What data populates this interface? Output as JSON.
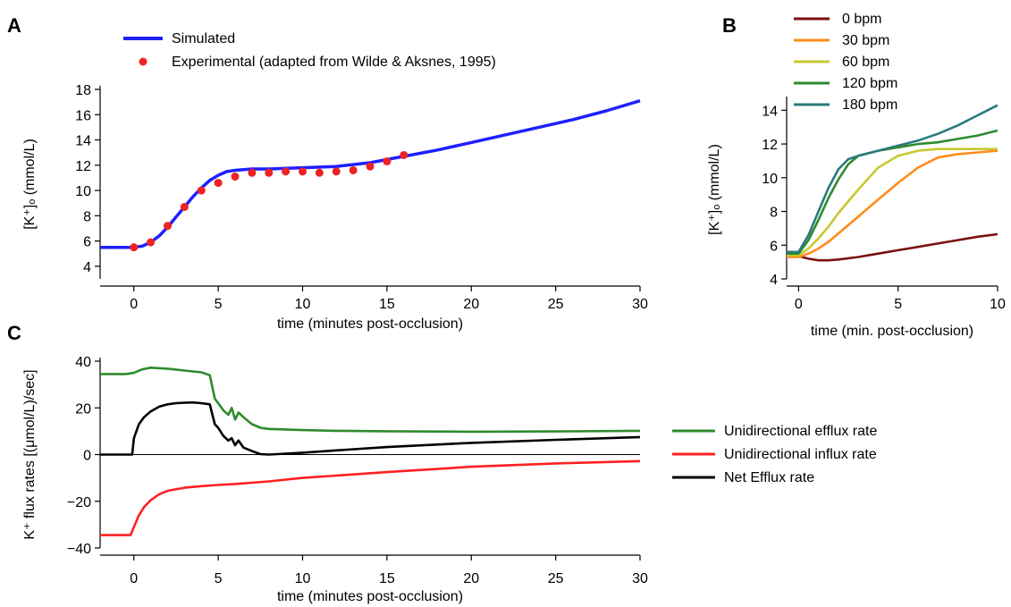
{
  "panel_letters": {
    "a": "A",
    "b": "B",
    "c": "C"
  },
  "chart_data": [
    {
      "id": "A",
      "type": "line",
      "xlabel": "time (minutes post-occlusion)",
      "ylabel": "[K⁺]ₒ (mmol/L)",
      "xlim": [
        -2,
        30
      ],
      "ylim": [
        3,
        18
      ],
      "xticks": [
        0,
        5,
        10,
        15,
        20,
        25,
        30
      ],
      "yticks": [
        4,
        6,
        8,
        10,
        12,
        14,
        16,
        18
      ],
      "legend_position": "top-left",
      "series": [
        {
          "name": "Simulated",
          "kind": "line",
          "color": "#1f1fff",
          "x": [
            -2,
            -1,
            0,
            0.5,
            1,
            1.5,
            2,
            2.5,
            3,
            3.5,
            4,
            4.5,
            5,
            5.5,
            6,
            7,
            8,
            10,
            12,
            14,
            16,
            18,
            20,
            22,
            24,
            26,
            28,
            30
          ],
          "y": [
            5.5,
            5.5,
            5.5,
            5.6,
            5.9,
            6.4,
            7.1,
            7.9,
            8.7,
            9.5,
            10.2,
            10.8,
            11.2,
            11.5,
            11.6,
            11.7,
            11.7,
            11.8,
            11.9,
            12.2,
            12.7,
            13.2,
            13.8,
            14.4,
            15.0,
            15.6,
            16.3,
            17.1
          ]
        },
        {
          "name": "Experimental (adapted from Wilde & Aksnes, 1995)",
          "kind": "scatter",
          "color": "#ee2222",
          "x": [
            0,
            1,
            2,
            3,
            4,
            5,
            6,
            7,
            8,
            9,
            10,
            11,
            12,
            13,
            14,
            15,
            16
          ],
          "y": [
            5.5,
            5.9,
            7.2,
            8.7,
            10.0,
            10.6,
            11.1,
            11.4,
            11.4,
            11.5,
            11.5,
            11.4,
            11.5,
            11.6,
            11.9,
            12.3,
            12.8
          ]
        }
      ]
    },
    {
      "id": "B",
      "type": "line",
      "xlabel": "time (min. post-occlusion)",
      "ylabel": "[K⁺]ₒ (mmol/L)",
      "xlim": [
        -0.6,
        10
      ],
      "ylim": [
        4,
        14.6
      ],
      "xticks": [
        0,
        5,
        10
      ],
      "yticks": [
        4,
        6,
        8,
        10,
        12,
        14
      ],
      "legend_position": "top",
      "series": [
        {
          "name": "0 bpm",
          "color": "#7a1010",
          "x": [
            -0.6,
            0,
            0.5,
            1,
            1.5,
            2,
            3,
            4,
            5,
            6,
            7,
            8,
            9,
            10
          ],
          "y": [
            5.4,
            5.35,
            5.2,
            5.1,
            5.1,
            5.15,
            5.3,
            5.5,
            5.7,
            5.9,
            6.1,
            6.3,
            6.5,
            6.65
          ]
        },
        {
          "name": "30 bpm",
          "color": "#ff8c1a",
          "x": [
            -0.6,
            0,
            0.5,
            1,
            1.5,
            2,
            3,
            4,
            5,
            6,
            7,
            8,
            9,
            10
          ],
          "y": [
            5.3,
            5.3,
            5.5,
            5.8,
            6.2,
            6.7,
            7.7,
            8.7,
            9.7,
            10.6,
            11.2,
            11.4,
            11.5,
            11.6
          ]
        },
        {
          "name": "60 bpm",
          "color": "#c8c832",
          "x": [
            -0.6,
            0,
            0.5,
            1,
            1.5,
            2,
            3,
            4,
            5,
            6,
            7,
            8,
            9,
            10
          ],
          "y": [
            5.4,
            5.4,
            5.8,
            6.4,
            7.1,
            7.9,
            9.3,
            10.6,
            11.3,
            11.6,
            11.7,
            11.7,
            11.7,
            11.7
          ]
        },
        {
          "name": "120 bpm",
          "color": "#2e8b2e",
          "x": [
            -0.6,
            0,
            0.5,
            1,
            1.5,
            2,
            2.5,
            3,
            4,
            5,
            6,
            7,
            8,
            9,
            10
          ],
          "y": [
            5.5,
            5.5,
            6.3,
            7.5,
            8.8,
            9.9,
            10.8,
            11.3,
            11.6,
            11.8,
            12.0,
            12.1,
            12.3,
            12.5,
            12.8
          ]
        },
        {
          "name": "180 bpm",
          "color": "#2a7a7a",
          "x": [
            -0.6,
            0,
            0.5,
            1,
            1.5,
            2,
            2.5,
            3,
            4,
            5,
            6,
            7,
            8,
            9,
            10
          ],
          "y": [
            5.6,
            5.6,
            6.6,
            8.0,
            9.4,
            10.5,
            11.1,
            11.3,
            11.6,
            11.9,
            12.2,
            12.6,
            13.1,
            13.7,
            14.3
          ]
        }
      ]
    },
    {
      "id": "C",
      "type": "line",
      "xlabel": "time (minutes post-occlusion)",
      "ylabel": "K⁺ flux rates [(μmol/L)/sec]",
      "xlim": [
        -2,
        30
      ],
      "ylim": [
        -40,
        40
      ],
      "xticks": [
        0,
        5,
        10,
        15,
        20,
        25,
        30
      ],
      "yticks": [
        -40,
        -20,
        0,
        20,
        40
      ],
      "legend_position": "right",
      "series": [
        {
          "name": "Unidirectional efflux rate",
          "color": "#2e8b2e",
          "x": [
            -2,
            -0.5,
            0,
            0.5,
            1,
            2,
            3,
            4,
            4.5,
            4.8,
            5.0,
            5.3,
            5.6,
            5.8,
            6.0,
            6.2,
            6.5,
            7,
            7.5,
            8,
            10,
            12,
            15,
            20,
            25,
            30
          ],
          "y": [
            34.5,
            34.5,
            35,
            36.5,
            37.2,
            36.8,
            36,
            35.2,
            34,
            24,
            22,
            19,
            17,
            20,
            15,
            18,
            16,
            13,
            11.5,
            11,
            10.5,
            10.2,
            10,
            9.8,
            9.9,
            10.2
          ]
        },
        {
          "name": "Unidirectional influx rate",
          "color": "#ff2020",
          "x": [
            -2,
            -0.2,
            0,
            0.3,
            0.6,
            1,
            1.5,
            2,
            3,
            4,
            5,
            6,
            8,
            10,
            12,
            15,
            20,
            25,
            30
          ],
          "y": [
            -34.5,
            -34.5,
            -31,
            -26,
            -22.5,
            -19.5,
            -17,
            -15.5,
            -14.2,
            -13.5,
            -13,
            -12.6,
            -11.5,
            -10,
            -9,
            -7.5,
            -5.2,
            -3.8,
            -2.8
          ]
        },
        {
          "name": "Net Efflux rate",
          "color": "#000000",
          "x": [
            -2,
            -0.1,
            0,
            0.3,
            0.6,
            1,
            1.5,
            2,
            2.5,
            3,
            3.5,
            4,
            4.5,
            4.8,
            5.0,
            5.3,
            5.6,
            5.8,
            6.0,
            6.2,
            6.5,
            7,
            7.5,
            8,
            10,
            12,
            15,
            20,
            25,
            30
          ],
          "y": [
            0,
            0,
            7,
            13,
            16,
            18.5,
            20.5,
            21.5,
            22,
            22.2,
            22.3,
            22,
            21.5,
            13,
            11.5,
            8,
            6,
            7,
            4,
            6,
            3,
            1.5,
            0.2,
            0,
            0.8,
            1.8,
            3.2,
            5,
            6.3,
            7.5
          ]
        }
      ]
    }
  ]
}
